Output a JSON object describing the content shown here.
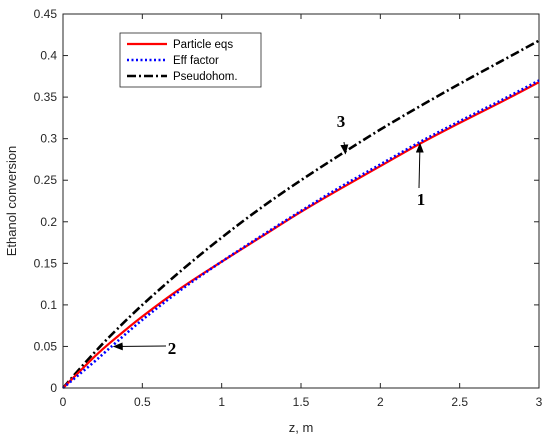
{
  "chart_data": {
    "type": "line",
    "title": "",
    "xlabel": "z,  m",
    "ylabel": "Ethanol conversion",
    "xlim": [
      0,
      3
    ],
    "ylim": [
      0,
      0.45
    ],
    "xticks": [
      0,
      0.5,
      1,
      1.5,
      2,
      2.5,
      3
    ],
    "xtick_labels": [
      "0",
      "0.5",
      "1",
      "1.5",
      "2",
      "2.5",
      "3"
    ],
    "yticks": [
      0,
      0.05,
      0.1,
      0.15,
      0.2,
      0.25,
      0.3,
      0.35,
      0.4,
      0.45
    ],
    "ytick_labels": [
      "0",
      "0.05",
      "0.1",
      "0.15",
      "0.2",
      "0.25",
      "0.3",
      "0.35",
      "0.4",
      "0.45"
    ],
    "grid": false,
    "legend_position": "top-left",
    "series": [
      {
        "name": "Particle eqs",
        "color": "#ff0000",
        "style": "solid",
        "x": [
          0,
          0.1,
          0.2,
          0.3,
          0.5,
          0.75,
          1.0,
          1.25,
          1.5,
          1.75,
          2.0,
          2.25,
          2.5,
          2.75,
          3.0
        ],
        "y": [
          0,
          0.019,
          0.038,
          0.055,
          0.086,
          0.121,
          0.152,
          0.182,
          0.212,
          0.24,
          0.267,
          0.294,
          0.319,
          0.343,
          0.368
        ]
      },
      {
        "name": "Eff factor",
        "color": "#0000ff",
        "style": "dotted",
        "x": [
          0,
          0.1,
          0.2,
          0.3,
          0.5,
          0.75,
          1.0,
          1.25,
          1.5,
          1.75,
          2.0,
          2.25,
          2.5,
          2.75,
          3.0
        ],
        "y": [
          0,
          0.016,
          0.032,
          0.049,
          0.082,
          0.119,
          0.152,
          0.183,
          0.213,
          0.242,
          0.269,
          0.296,
          0.321,
          0.345,
          0.37
        ]
      },
      {
        "name": "Pseudohom.",
        "color": "#000000",
        "style": "dashdot",
        "x": [
          0,
          0.1,
          0.2,
          0.3,
          0.5,
          0.75,
          1.0,
          1.25,
          1.5,
          1.75,
          2.0,
          2.25,
          2.5,
          2.75,
          3.0
        ],
        "y": [
          0,
          0.022,
          0.043,
          0.063,
          0.1,
          0.142,
          0.181,
          0.217,
          0.25,
          0.281,
          0.311,
          0.339,
          0.366,
          0.392,
          0.418
        ]
      }
    ],
    "annotations": [
      {
        "text": "1",
        "point": [
          2.25,
          0.294
        ]
      },
      {
        "text": "2",
        "point": [
          0.32,
          0.05
        ]
      },
      {
        "text": "3",
        "point": [
          1.78,
          0.282
        ]
      }
    ]
  }
}
